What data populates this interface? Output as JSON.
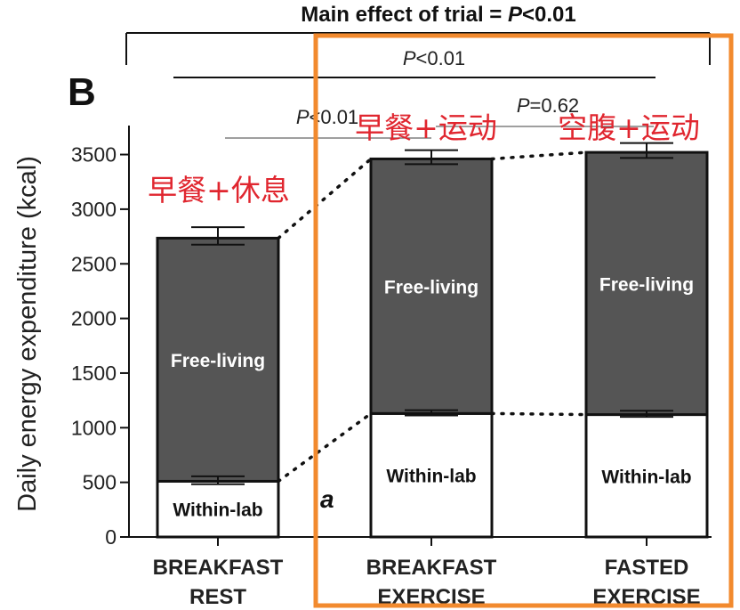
{
  "chart_data": {
    "type": "bar",
    "stacked": true,
    "title_html": "Main effect of trial = P<0.01",
    "title_prefix": "Main effect of trial = ",
    "title_p": "P",
    "title_suffix": "<0.01",
    "panel_label": "B",
    "ylabel": "Daily energy expenditure (kcal)",
    "ylim": [
      0,
      3700
    ],
    "yticks": [
      0,
      500,
      1000,
      1500,
      2000,
      2500,
      3000,
      3500
    ],
    "categories": [
      {
        "line1": "BREAKFAST",
        "line2": "REST"
      },
      {
        "line1": "BREAKFAST",
        "line2": "EXERCISE"
      },
      {
        "line1": "FASTED",
        "line2": "EXERCISE"
      }
    ],
    "series": [
      {
        "name": "Within-lab",
        "values": [
          510,
          1130,
          1120
        ],
        "error": [
          45,
          30,
          35
        ],
        "color": "#ffffff",
        "label_color": "#111111"
      },
      {
        "name": "Free-living",
        "values": [
          2225,
          2330,
          2400
        ],
        "error": [
          100,
          80,
          85
        ],
        "color": "#555555",
        "label_color": "#ffffff"
      }
    ],
    "significance": [
      {
        "p": "P",
        "text": "<0.01"
      },
      {
        "p": "P",
        "text": "<0.01"
      },
      {
        "p": "P",
        "text": "=0.62"
      }
    ],
    "stray_text": "a",
    "annotations_cn": [
      "早餐+休息",
      "早餐+运动",
      "空腹+运动"
    ],
    "highlight_color": "#f28a2e"
  }
}
